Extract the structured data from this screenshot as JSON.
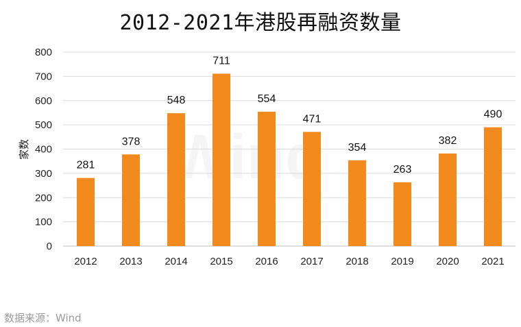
{
  "chart_data": {
    "type": "bar",
    "title": "2012-2021年港股再融资数量",
    "ylabel": "家数",
    "xlabel": "",
    "categories": [
      "2012",
      "2013",
      "2014",
      "2015",
      "2016",
      "2017",
      "2018",
      "2019",
      "2020",
      "2021"
    ],
    "values": [
      281,
      378,
      548,
      711,
      554,
      471,
      354,
      263,
      382,
      490
    ],
    "ylim": [
      0,
      800
    ],
    "yticks": [
      0,
      100,
      200,
      300,
      400,
      500,
      600,
      700,
      800
    ],
    "grid": true,
    "bar_color": "#F28A1D",
    "grid_color": "#d9d9d9"
  },
  "watermark": "Wind",
  "source": "数据来源：Wind"
}
